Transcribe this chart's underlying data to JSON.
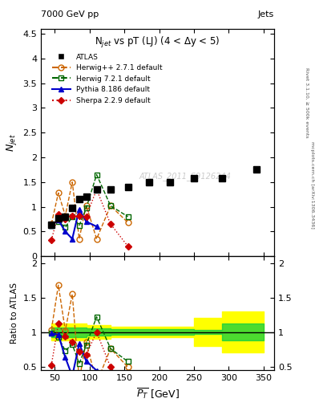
{
  "title": "N$_{jet}$ vs pT (LJ) (4 < $\\Delta$y < 5)",
  "header_left": "7000 GeV pp",
  "header_right": "Jets",
  "ylabel_main": "$N_{jet}$",
  "ylabel_ratio": "Ratio to ATLAS",
  "xlabel": "$\\overline{P_T}$ [GeV]",
  "watermark": "ATLAS_2011_S9126244",
  "right_label": "Rivet 3.1.10, ≥ 500k events",
  "right_label2": "mcplots.cern.ch [arXiv:1306.3436]",
  "atlas_x": [
    45,
    55,
    65,
    75,
    85,
    95,
    110,
    130,
    155,
    185,
    215,
    250,
    290,
    340
  ],
  "atlas_y": [
    0.63,
    0.76,
    0.8,
    0.97,
    1.15,
    1.2,
    1.35,
    1.35,
    1.4,
    1.5,
    1.5,
    1.57,
    1.57,
    1.75
  ],
  "herwig271_x": [
    45,
    55,
    65,
    75,
    85,
    95,
    110,
    130,
    155
  ],
  "herwig271_y": [
    0.65,
    1.28,
    0.82,
    1.5,
    0.35,
    1.03,
    0.35,
    1.02,
    0.68
  ],
  "herwig721_x": [
    45,
    55,
    65,
    75,
    85,
    95,
    110,
    130,
    155
  ],
  "herwig721_y": [
    0.62,
    0.7,
    0.58,
    0.8,
    0.62,
    0.97,
    1.65,
    1.02,
    0.8
  ],
  "pythia_x": [
    45,
    55,
    65,
    75,
    85,
    95,
    110
  ],
  "pythia_y": [
    0.62,
    0.73,
    0.5,
    0.35,
    0.95,
    0.7,
    0.6
  ],
  "sherpa_x": [
    45,
    55,
    65,
    75,
    85,
    95,
    110,
    130,
    155
  ],
  "sherpa_y": [
    0.33,
    0.85,
    0.75,
    0.82,
    0.82,
    0.8,
    1.35,
    0.65,
    0.2
  ],
  "herwig271_ratio_x": [
    45,
    55,
    65,
    75,
    85,
    95,
    110,
    130,
    155
  ],
  "herwig271_ratio_y": [
    1.03,
    1.68,
    1.02,
    1.55,
    0.3,
    0.86,
    0.26,
    0.76,
    0.49
  ],
  "herwig721_ratio_x": [
    45,
    55,
    65,
    75,
    85,
    95,
    110,
    130,
    155
  ],
  "herwig721_ratio_y": [
    0.98,
    0.92,
    0.73,
    0.82,
    0.54,
    0.81,
    1.22,
    0.76,
    0.57
  ],
  "pythia_ratio_x": [
    45,
    55,
    65,
    75,
    85,
    95,
    110
  ],
  "pythia_ratio_y": [
    0.98,
    0.96,
    0.63,
    0.36,
    0.83,
    0.58,
    0.44
  ],
  "sherpa_ratio_x": [
    45,
    55,
    65,
    75,
    85,
    95,
    110,
    130,
    155
  ],
  "sherpa_ratio_y": [
    0.52,
    1.12,
    0.94,
    0.85,
    0.71,
    0.67,
    1.0,
    0.49,
    0.15
  ],
  "green_band_x": [
    45,
    95,
    130,
    185,
    250,
    290,
    350
  ],
  "green_band_ylow": [
    0.93,
    0.95,
    0.96,
    0.96,
    0.97,
    0.88,
    0.88
  ],
  "green_band_yhigh": [
    1.07,
    1.05,
    1.04,
    1.04,
    1.03,
    1.12,
    1.12
  ],
  "yellow_band_x": [
    45,
    95,
    130,
    185,
    250,
    290,
    350
  ],
  "yellow_band_ylow": [
    0.88,
    0.9,
    0.92,
    0.92,
    0.8,
    0.7,
    0.7
  ],
  "yellow_band_yhigh": [
    1.12,
    1.1,
    1.08,
    1.08,
    1.2,
    1.3,
    1.3
  ],
  "atlas_color": "#000000",
  "herwig271_color": "#cc6600",
  "herwig721_color": "#006600",
  "pythia_color": "#0000cc",
  "sherpa_color": "#cc0000",
  "green_band_color": "#00cc44",
  "yellow_band_color": "#ffff00",
  "ylim_main": [
    0,
    4.6
  ],
  "ylim_ratio": [
    0.45,
    2.1
  ],
  "xlim": [
    30,
    365
  ]
}
